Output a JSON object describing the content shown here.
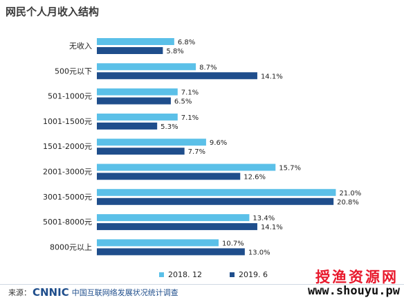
{
  "title": "网民个人月收入结构",
  "chart_data": {
    "type": "bar",
    "orientation": "horizontal",
    "categories": [
      "无收入",
      "500元以下",
      "501-1000元",
      "1001-1500元",
      "1501-2000元",
      "2001-3000元",
      "3001-5000元",
      "5001-8000元",
      "8000元以上"
    ],
    "series": [
      {
        "name": "2018. 12",
        "color": "#5bc0e8",
        "values": [
          6.8,
          8.7,
          7.1,
          7.1,
          9.6,
          15.7,
          21.0,
          13.4,
          10.7
        ],
        "labels": [
          "6.8%",
          "8.7%",
          "7.1%",
          "7.1%",
          "9.6%",
          "15.7%",
          "21.0%",
          "13.4%",
          "10.7%"
        ]
      },
      {
        "name": "2019. 6",
        "color": "#1f4e8c",
        "values": [
          5.8,
          14.1,
          6.5,
          5.3,
          7.7,
          12.6,
          20.8,
          14.1,
          13.0
        ],
        "labels": [
          "5.8%",
          "14.1%",
          "6.5%",
          "5.3%",
          "7.7%",
          "12.6%",
          "20.8%",
          "14.1%",
          "13.0%"
        ]
      }
    ],
    "legend_position": "bottom",
    "grid": false
  },
  "footer": {
    "source_prefix": "来源：",
    "logo_text": "CNNIC",
    "org_text": "中国互联网络发展状况统计调查"
  },
  "watermark": {
    "brand": "授渔资源网",
    "url": "www.shouyu.pw"
  }
}
